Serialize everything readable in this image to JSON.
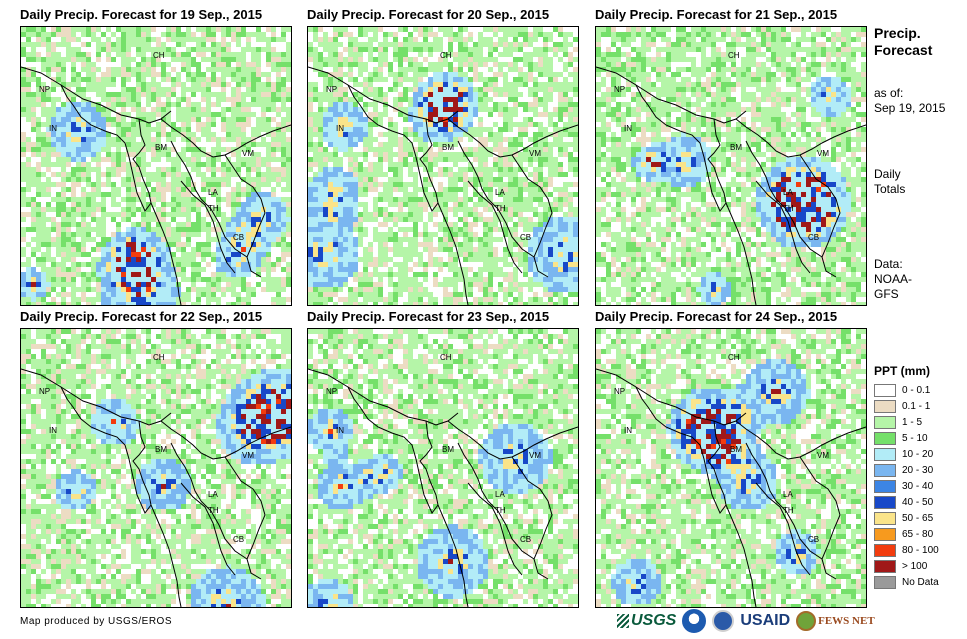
{
  "panels": [
    {
      "title": "Daily Precip. Forecast for 19 Sep., 2015",
      "seed": 11
    },
    {
      "title": "Daily Precip. Forecast for 20 Sep., 2015",
      "seed": 23
    },
    {
      "title": "Daily Precip. Forecast for 21 Sep., 2015",
      "seed": 37
    },
    {
      "title": "Daily Precip. Forecast for 22 Sep., 2015",
      "seed": 41
    },
    {
      "title": "Daily Precip. Forecast for 23 Sep., 2015",
      "seed": 53
    },
    {
      "title": "Daily Precip. Forecast for 24 Sep., 2015",
      "seed": 67
    }
  ],
  "country_labels": {
    "ch": "CH",
    "np": "NP",
    "in": "IN",
    "bm": "BM",
    "la": "LA",
    "vm": "VM",
    "th": "TH",
    "cb": "CB"
  },
  "sidebar": {
    "title_line1": "Precip.",
    "title_line2": "Forecast",
    "asof_line1": "as of:",
    "asof_line2": "Sep 19, 2015",
    "totals_line1": "Daily",
    "totals_line2": "Totals",
    "data_line1": "Data:",
    "data_line2": "NOAA-",
    "data_line3": "GFS"
  },
  "legend": {
    "title": "PPT (mm)",
    "items": [
      {
        "label": "0 - 0.1",
        "color": "#ffffff"
      },
      {
        "label": "0.1 - 1",
        "color": "#ecdcc3"
      },
      {
        "label": "1 - 5",
        "color": "#b5f5a8"
      },
      {
        "label": "5 - 10",
        "color": "#75e06a"
      },
      {
        "label": "10 - 20",
        "color": "#b2ecf7"
      },
      {
        "label": "20 - 30",
        "color": "#7ab6f0"
      },
      {
        "label": "30 - 40",
        "color": "#3c85e4"
      },
      {
        "label": "40 - 50",
        "color": "#1848c8"
      },
      {
        "label": "50 - 65",
        "color": "#fae48a"
      },
      {
        "label": "65 - 80",
        "color": "#f79a1e"
      },
      {
        "label": "80 - 100",
        "color": "#f23c0e"
      },
      {
        "label": "> 100",
        "color": "#a01818"
      },
      {
        "label": "No Data",
        "color": "#9a9a9a"
      }
    ]
  },
  "credit": "Map produced by USGS/EROS",
  "logos": {
    "usgs": "USGS",
    "usaid": "USAID",
    "fews": "FEWS NET"
  }
}
